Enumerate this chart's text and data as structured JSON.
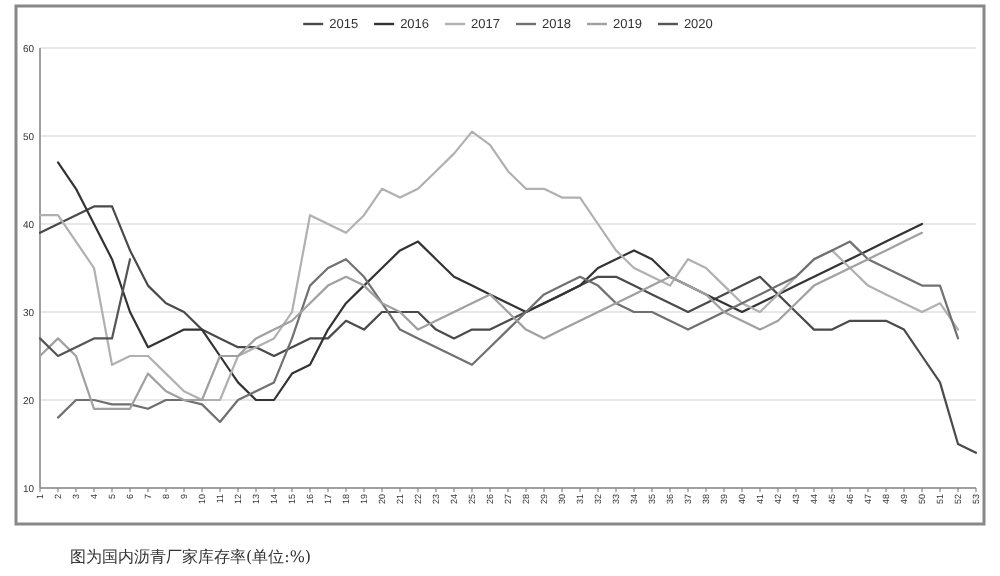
{
  "chart_data": {
    "type": "line",
    "categories": [
      "1",
      "2",
      "3",
      "4",
      "5",
      "6",
      "7",
      "8",
      "9",
      "10",
      "11",
      "12",
      "13",
      "14",
      "15",
      "16",
      "17",
      "18",
      "19",
      "20",
      "21",
      "22",
      "23",
      "24",
      "25",
      "26",
      "27",
      "28",
      "29",
      "30",
      "31",
      "32",
      "33",
      "34",
      "35",
      "36",
      "37",
      "38",
      "39",
      "40",
      "41",
      "42",
      "43",
      "44",
      "45",
      "46",
      "47",
      "48",
      "49",
      "50",
      "51",
      "52",
      "53"
    ],
    "series": [
      {
        "name": "2015",
        "color": "#4a4a4a",
        "values": [
          39,
          40,
          41,
          42,
          42,
          37,
          33,
          31,
          30,
          28,
          27,
          26,
          26,
          25,
          26,
          27,
          27,
          29,
          28,
          30,
          30,
          30,
          28,
          27,
          28,
          28,
          29,
          30,
          31,
          32,
          33,
          34,
          34,
          33,
          32,
          31,
          30,
          31,
          32,
          33,
          34,
          32,
          30,
          28,
          28,
          29,
          29,
          29,
          28,
          25,
          22,
          15,
          14
        ]
      },
      {
        "name": "2016",
        "color": "#333333",
        "values": [
          null,
          47,
          44,
          40,
          36,
          30,
          26,
          27,
          28,
          28,
          25,
          22,
          20,
          20,
          23,
          24,
          28,
          31,
          33,
          35,
          37,
          38,
          36,
          34,
          33,
          32,
          31,
          30,
          31,
          32,
          33,
          35,
          36,
          37,
          36,
          34,
          33,
          32,
          31,
          30,
          31,
          32,
          33,
          34,
          35,
          36,
          37,
          38,
          39,
          40,
          null,
          null,
          null
        ]
      },
      {
        "name": "2017",
        "color": "#b0b0b0",
        "values": [
          41,
          41,
          38,
          35,
          24,
          25,
          25,
          23,
          21,
          20,
          20,
          25,
          26,
          27,
          30,
          41,
          40,
          39,
          41,
          44,
          43,
          44,
          46,
          48,
          50.5,
          49,
          46,
          44,
          44,
          43,
          43,
          40,
          37,
          35,
          34,
          33,
          36,
          35,
          33,
          31,
          30,
          32,
          34,
          36,
          37,
          35,
          33,
          32,
          31,
          30,
          31,
          28,
          null
        ]
      },
      {
        "name": "2018",
        "color": "#707070",
        "values": [
          null,
          18,
          20,
          20,
          19.5,
          19.5,
          19,
          20,
          20,
          19.5,
          17.5,
          20,
          21,
          22,
          27,
          33,
          35,
          36,
          34,
          31,
          28,
          27,
          26,
          25,
          24,
          26,
          28,
          30,
          32,
          33,
          34,
          33,
          31,
          30,
          30,
          29,
          28,
          29,
          30,
          31,
          32,
          33,
          34,
          36,
          37,
          38,
          36,
          35,
          34,
          33,
          33,
          27,
          null
        ]
      },
      {
        "name": "2019",
        "color": "#a0a0a0",
        "values": [
          25,
          27,
          25,
          19,
          19,
          19,
          23,
          21,
          20,
          20,
          25,
          25,
          27,
          28,
          29,
          31,
          33,
          34,
          33,
          31,
          30,
          28,
          29,
          30,
          31,
          32,
          30,
          28,
          27,
          28,
          29,
          30,
          31,
          32,
          33,
          34,
          33,
          32,
          30,
          29,
          28,
          29,
          31,
          33,
          34,
          35,
          36,
          37,
          38,
          39,
          null,
          null,
          null
        ]
      },
      {
        "name": "2020",
        "color": "#555555",
        "values": [
          27,
          25,
          26,
          27,
          27,
          36,
          null,
          null,
          null,
          null,
          null,
          null,
          null,
          null,
          null,
          null,
          null,
          null,
          null,
          null,
          null,
          null,
          null,
          null,
          null,
          null,
          null,
          null,
          null,
          null,
          null,
          null,
          null,
          null,
          null,
          null,
          null,
          null,
          null,
          null,
          null,
          null,
          null,
          null,
          null,
          null,
          null,
          null,
          null,
          null,
          null,
          null,
          null
        ]
      }
    ],
    "ylim": [
      10,
      60
    ],
    "yticks": [
      10,
      20,
      30,
      40,
      50,
      60
    ],
    "grid": "y",
    "legend": "top",
    "annotations": [
      "图为国内沥青厂家库存率(单位:%)"
    ]
  }
}
